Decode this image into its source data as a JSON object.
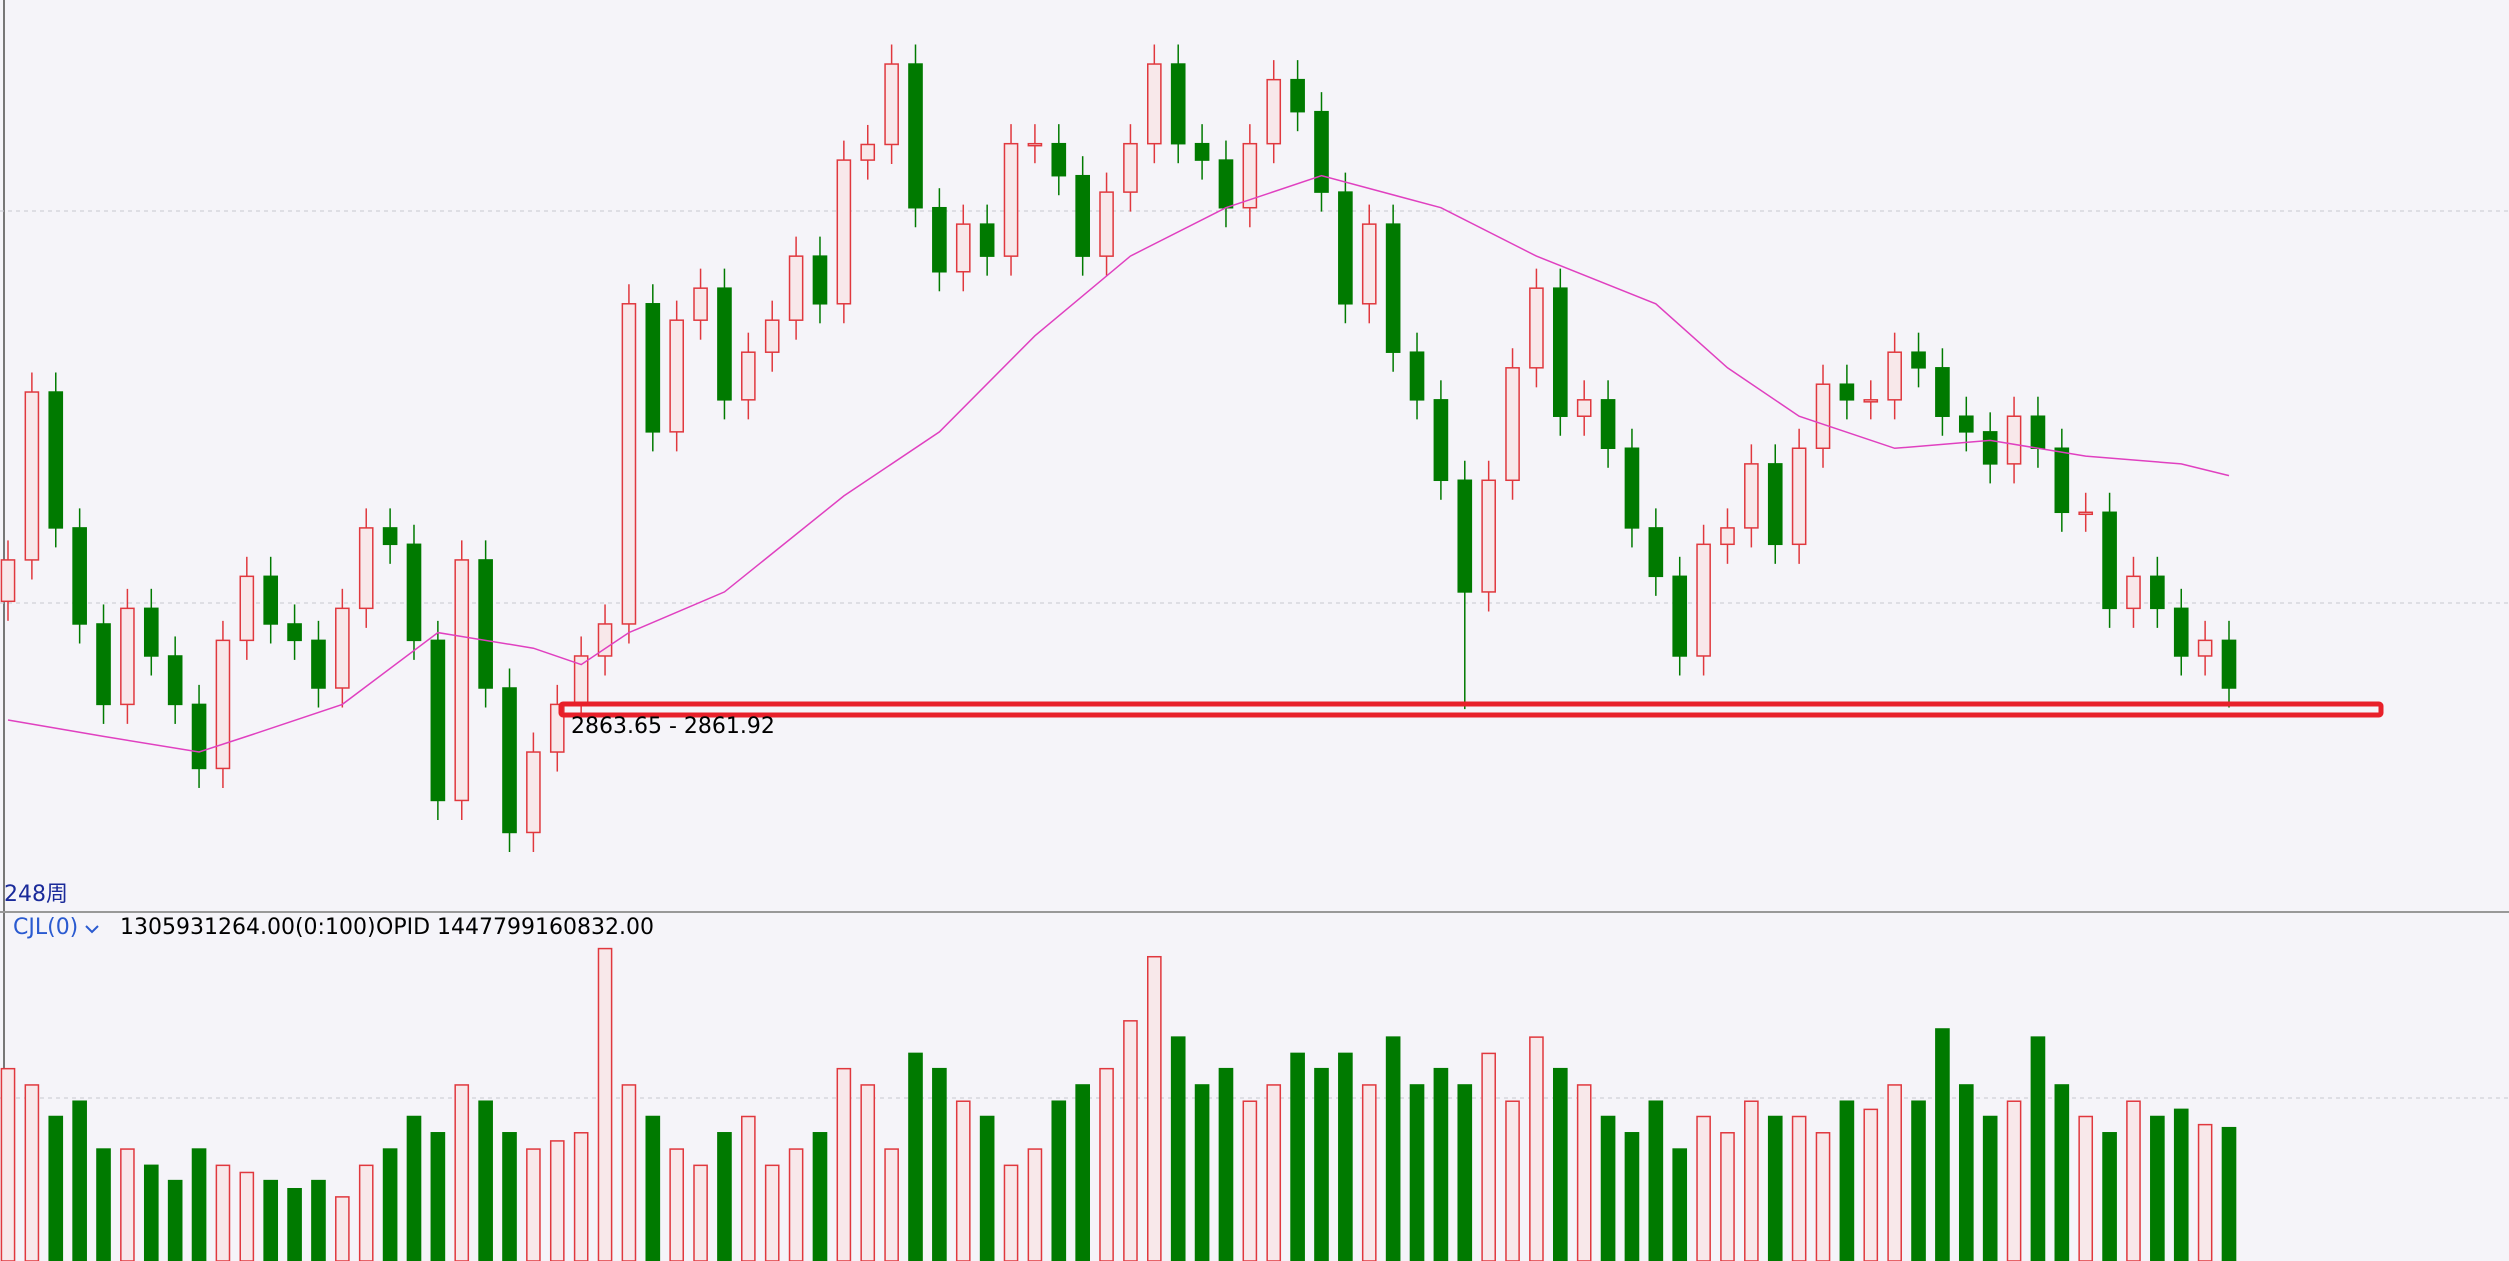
{
  "chart_data": [
    {
      "type": "candlestick",
      "open": [
        3000,
        3053,
        3268,
        3094,
        2971,
        2868,
        2991,
        2930,
        2868,
        2786,
        2950,
        3032,
        2971,
        2950,
        2889,
        2991,
        3094,
        3073,
        2950,
        2745,
        3053,
        2889,
        2704,
        2807,
        2868,
        2930,
        2971,
        3381,
        3217,
        3360,
        3401,
        3258,
        3319,
        3360,
        3442,
        3381,
        3565,
        3585,
        3688,
        3504,
        3422,
        3483,
        3442,
        3586,
        3586,
        3545,
        3442,
        3524,
        3586,
        3688,
        3586,
        3565,
        3504,
        3586,
        3668,
        3627,
        3524,
        3381,
        3483,
        3319,
        3258,
        3155,
        3012,
        3155,
        3299,
        3401,
        3237,
        3258,
        3196,
        3094,
        3032,
        2930,
        3073,
        3094,
        3176,
        3073,
        3196,
        3278,
        3258,
        3258,
        3319,
        3299,
        3237,
        3217,
        3176,
        3237,
        3196,
        3114,
        3114,
        2991,
        3032,
        2991,
        2930,
        2950
      ],
      "high": [
        3078,
        3293,
        3293,
        3119,
        2996,
        3016,
        3016,
        2955,
        2893,
        2975,
        3057,
        3057,
        2996,
        2975,
        3016,
        3119,
        3119,
        3098,
        2975,
        3078,
        3078,
        2914,
        2832,
        2893,
        2955,
        2996,
        3406,
        3406,
        3385,
        3426,
        3426,
        3344,
        3385,
        3467,
        3467,
        3590,
        3610,
        3713,
        3713,
        3529,
        3508,
        3508,
        3611,
        3611,
        3611,
        3570,
        3549,
        3611,
        3713,
        3713,
        3611,
        3590,
        3611,
        3693,
        3693,
        3652,
        3549,
        3508,
        3508,
        3344,
        3283,
        3180,
        3180,
        3324,
        3426,
        3426,
        3283,
        3283,
        3221,
        3119,
        3057,
        3098,
        3119,
        3201,
        3201,
        3221,
        3303,
        3303,
        3283,
        3344,
        3344,
        3324,
        3262,
        3242,
        3262,
        3262,
        3221,
        3139,
        3139,
        3057,
        3057,
        3016,
        2975,
        2975
      ],
      "low": [
        2975,
        3028,
        3069,
        2946,
        2843,
        2843,
        2905,
        2843,
        2761,
        2761,
        2925,
        2946,
        2925,
        2864,
        2864,
        2966,
        3048,
        2925,
        2720,
        2720,
        2864,
        2679,
        2679,
        2782,
        2843,
        2905,
        2946,
        3192,
        3192,
        3335,
        3233,
        3233,
        3294,
        3335,
        3356,
        3356,
        3540,
        3560,
        3479,
        3397,
        3397,
        3417,
        3417,
        3561,
        3520,
        3417,
        3417,
        3499,
        3561,
        3561,
        3540,
        3479,
        3479,
        3561,
        3602,
        3499,
        3356,
        3356,
        3294,
        3233,
        3130,
        2862,
        2987,
        3130,
        3274,
        3212,
        3212,
        3171,
        3069,
        3007,
        2905,
        2905,
        3048,
        3069,
        3048,
        3048,
        3171,
        3233,
        3233,
        3233,
        3274,
        3212,
        3192,
        3151,
        3151,
        3171,
        3089,
        3089,
        2966,
        2966,
        2966,
        2905,
        2905,
        2864
      ],
      "close": [
        3053,
        3268,
        3094,
        2971,
        2868,
        2991,
        2930,
        2868,
        2786,
        2950,
        3032,
        2971,
        2950,
        2889,
        2991,
        3094,
        3073,
        2950,
        2745,
        3053,
        2889,
        2704,
        2807,
        2868,
        2930,
        2971,
        3381,
        3217,
        3360,
        3401,
        3258,
        3319,
        3360,
        3442,
        3381,
        3565,
        3585,
        3688,
        3504,
        3422,
        3483,
        3442,
        3586,
        3586,
        3545,
        3442,
        3524,
        3586,
        3688,
        3586,
        3565,
        3504,
        3586,
        3668,
        3627,
        3524,
        3381,
        3483,
        3319,
        3258,
        3155,
        3012,
        3155,
        3299,
        3401,
        3237,
        3258,
        3196,
        3094,
        3032,
        2930,
        3073,
        3094,
        3176,
        3073,
        3196,
        3278,
        3258,
        3258,
        3319,
        3299,
        3237,
        3217,
        3176,
        3237,
        3196,
        3114,
        3114,
        2991,
        3032,
        2991,
        2930,
        2950,
        2889
      ],
      "ma": {
        "color": "#e040c0",
        "x": [
          0,
          4,
          8,
          10,
          14,
          18,
          22,
          24,
          26,
          30,
          35,
          39,
          43,
          47,
          51,
          55,
          60,
          64,
          69,
          72,
          75,
          79,
          83,
          87,
          91,
          93
        ],
        "values": [
          2848,
          2827,
          2807,
          2827,
          2868,
          2960,
          2940,
          2919,
          2960,
          3012,
          3135,
          3217,
          3340,
          3442,
          3504,
          3545,
          3504,
          3442,
          3381,
          3299,
          3237,
          3196,
          3206,
          3186,
          3176,
          3161
        ]
      },
      "up_color": "#e0383e",
      "down_color": "#007a00",
      "ylim": [
        2606,
        3770
      ],
      "annotation": "2863.65 - 2861.92",
      "period_label": "248周"
    },
    {
      "type": "volume",
      "indicator": "CJL(0)",
      "value_text": "1305931264.00(0:100)",
      "opid_text": "OPID 1447799160832.00",
      "values": [
        1890000000.0,
        1730000000.0,
        1420000000.0,
        1570000000.0,
        1100000000.0,
        1100000000.0,
        940000000.0,
        790000000.0,
        1100000000.0,
        940000000.0,
        870000000.0,
        790000000.0,
        710000000.0,
        790000000.0,
        630000000.0,
        940000000.0,
        1100000000.0,
        1420000000.0,
        1260000000.0,
        1730000000.0,
        1570000000.0,
        1260000000.0,
        1100000000.0,
        1180000000.0,
        1260000000.0,
        3070000000.0,
        1730000000.0,
        1420000000.0,
        1100000000.0,
        940000000.0,
        1260000000.0,
        1420000000.0,
        940000000.0,
        1100000000.0,
        1260000000.0,
        1890000000.0,
        1730000000.0,
        1100000000.0,
        2040000000.0,
        1890000000.0,
        1570000000.0,
        1420000000.0,
        940000000.0,
        1100000000.0,
        1570000000.0,
        1730000000.0,
        1890000000.0,
        2360000000.0,
        2990000000.0,
        2200000000.0,
        1730000000.0,
        1890000000.0,
        1570000000.0,
        1730000000.0,
        2040000000.0,
        1890000000.0,
        2040000000.0,
        1730000000.0,
        2200000000.0,
        1730000000.0,
        1890000000.0,
        1730000000.0,
        2040000000.0,
        1570000000.0,
        2200000000.0,
        1890000000.0,
        1730000000.0,
        1420000000.0,
        1260000000.0,
        1570000000.0,
        1100000000.0,
        1420000000.0,
        1260000000.0,
        1570000000.0,
        1420000000.0,
        1420000000.0,
        1260000000.0,
        1570000000.0,
        1490000000.0,
        1730000000.0,
        1570000000.0,
        2280000000.0,
        1730000000.0,
        1420000000.0,
        1570000000.0,
        2200000000.0,
        1730000000.0,
        1420000000.0,
        1260000000.0,
        1570000000.0,
        1420000000.0,
        1490000000.0,
        1340000000.0,
        1310000000.0
      ],
      "ylim": [
        0,
        3400000000.0
      ]
    }
  ]
}
